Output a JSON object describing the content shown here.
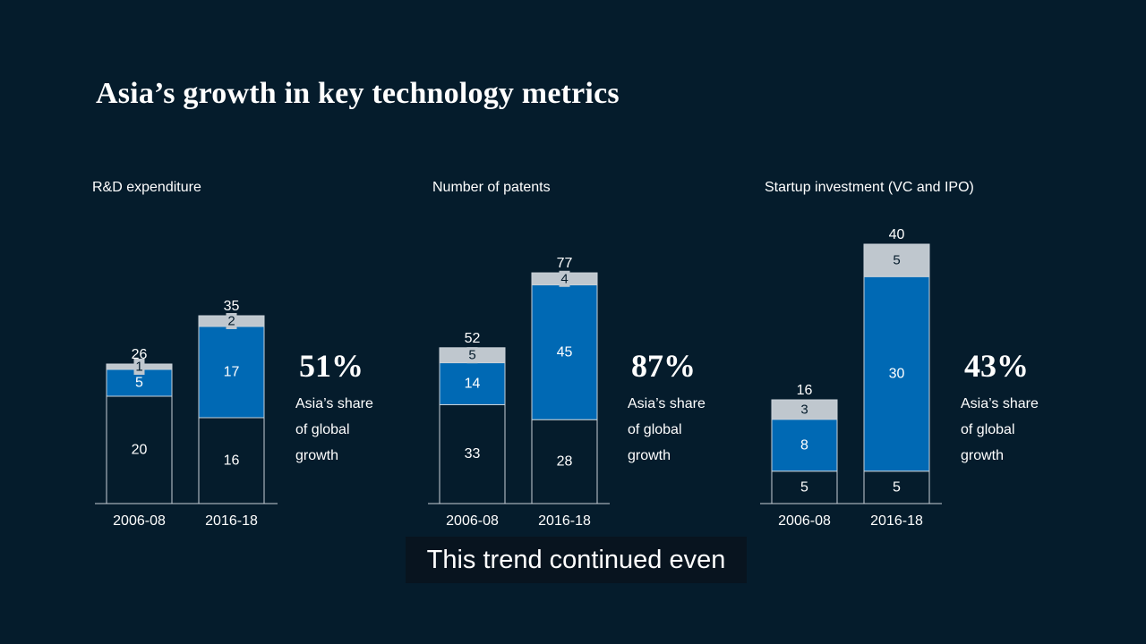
{
  "colors": {
    "background": "#051c2c",
    "bottom_segment": "#051c2c",
    "middle_segment": "#0069b4",
    "top_segment": "#bfc7ce",
    "outline": "#c9d1d8",
    "text": "#ffffff",
    "top_label_text": "#051c2c"
  },
  "title": "Asia’s growth in key technology metrics",
  "caption": "This trend continued even",
  "chart_data": [
    {
      "type": "bar",
      "stacked": true,
      "title": "R&D expenditure",
      "categories": [
        "2006-08",
        "2016-18"
      ],
      "series": [
        {
          "values": [
            20,
            16
          ]
        },
        {
          "values": [
            5,
            17
          ]
        },
        {
          "values": [
            1,
            2
          ]
        }
      ],
      "totals": [
        26,
        35
      ],
      "highlight_value": "51%",
      "highlight_text": [
        "Asia’s share",
        "of global",
        "growth"
      ]
    },
    {
      "type": "bar",
      "stacked": true,
      "title": "Number of patents",
      "categories": [
        "2006-08",
        "2016-18"
      ],
      "series": [
        {
          "values": [
            33,
            28
          ]
        },
        {
          "values": [
            14,
            45
          ]
        },
        {
          "values": [
            5,
            4
          ]
        }
      ],
      "totals": [
        52,
        77
      ],
      "highlight_value": "87%",
      "highlight_text": [
        "Asia’s share",
        "of global",
        "growth"
      ]
    },
    {
      "type": "bar",
      "stacked": true,
      "title": "Startup investment (VC and IPO)",
      "categories": [
        "2006-08",
        "2016-18"
      ],
      "series": [
        {
          "values": [
            5,
            5
          ]
        },
        {
          "values": [
            8,
            30
          ]
        },
        {
          "values": [
            3,
            5
          ]
        }
      ],
      "totals": [
        16,
        40
      ],
      "highlight_value": "43%",
      "highlight_text": [
        "Asia’s share",
        "of global",
        "growth"
      ]
    }
  ]
}
